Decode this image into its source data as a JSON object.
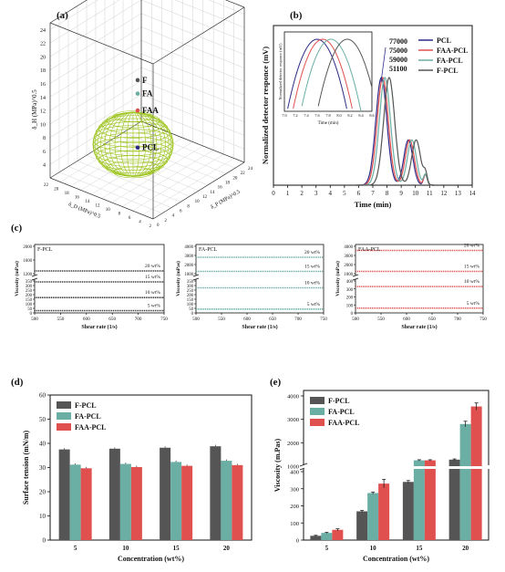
{
  "figure_labels": [
    "(a)",
    "(b)",
    "(c)",
    "(d)",
    "(e)"
  ],
  "colors": {
    "F": "#555555",
    "FA": "#6aaea4",
    "FAA": "#e0504f",
    "PCL": "#2e2a86",
    "sphere": "#9dc41c",
    "c_line": "#333333"
  },
  "chart_data": [
    {
      "id": "a",
      "type": "scatter",
      "panel_label": "(a)",
      "axes": {
        "vertical": {
          "label": "δ_H (MPa)^0.5",
          "ticks": [
            4,
            6,
            8,
            10,
            12,
            14,
            16,
            18,
            20,
            22,
            24
          ]
        },
        "left_floor": {
          "label": "δ_D (MPa)^0.5",
          "ticks": [
            22,
            20,
            18,
            16,
            14,
            12,
            10,
            8,
            6,
            4,
            2
          ]
        },
        "right_floor": {
          "label": "δ_P (MPa)^0.5",
          "ticks": [
            0,
            2,
            4,
            6,
            8,
            10,
            12,
            14,
            16,
            18,
            20,
            22,
            24
          ]
        }
      },
      "points": [
        {
          "name": "F",
          "z": 16.5
        },
        {
          "name": "FA",
          "z": 14.5
        },
        {
          "name": "FAA",
          "z": 12.0
        },
        {
          "name": "PCL",
          "z": 6.5
        }
      ],
      "sphere": {
        "center_name": "PCL",
        "z_range": [
          2.5,
          12
        ]
      }
    },
    {
      "id": "b",
      "type": "line",
      "panel_label": "(b)",
      "xlabel": "Time (min)",
      "ylabel": "Normalized detector responce (mV)",
      "xlim": [
        0,
        14
      ],
      "xticks": [
        0,
        1,
        2,
        3,
        4,
        5,
        6,
        7,
        8,
        9,
        10,
        11,
        12,
        13,
        14
      ],
      "legend": [
        "PCL",
        "FAA-PCL",
        "FA-PCL",
        "F-PCL"
      ],
      "legend_position": "top-right",
      "peak_annotations": [
        "77000",
        "75000",
        "59000",
        "51100"
      ],
      "series": [
        {
          "name": "PCL",
          "peak": 7.6
        },
        {
          "name": "FAA-PCL",
          "peak": 7.7
        },
        {
          "name": "FA-PCL",
          "peak": 7.85
        },
        {
          "name": "F-PCL",
          "peak": 8.15
        }
      ],
      "inset": {
        "ylabel": "Normalized detector responce (mV)",
        "xlabel": "Time (min)",
        "xlim": [
          7.0,
          8.6
        ],
        "xticks": [
          "7.0",
          "7.2",
          "7.4",
          "7.6",
          "7.8",
          "8.0",
          "8.2",
          "8.4",
          "8.6"
        ]
      }
    },
    {
      "id": "c1",
      "type": "line",
      "panel_label": "(c)",
      "title": "F-PCL",
      "xlabel": "Shear rate (1/s)",
      "ylabel": "Viscosity (mPas)",
      "xlim": [
        500,
        750
      ],
      "xticks": [
        500,
        550,
        600,
        650,
        700,
        750
      ],
      "yticks_upper": [
        1200,
        1600,
        2000
      ],
      "yticks_lower": [
        0,
        50,
        100,
        150,
        200,
        250,
        300,
        350
      ],
      "series": [
        {
          "name": "20 wt%",
          "value": 1280
        },
        {
          "name": "15 wt%",
          "value": 340
        },
        {
          "name": "10 wt%",
          "value": 168
        },
        {
          "name": "5 wt%",
          "value": 25
        }
      ]
    },
    {
      "id": "c2",
      "type": "line",
      "title": "FA-PCL",
      "xlabel": "Shear rate (1/s)",
      "ylabel": "Viscosity (mPas)",
      "xlim": [
        500,
        750
      ],
      "xticks": [
        500,
        550,
        600,
        650,
        700,
        750
      ],
      "yticks_upper": [
        1000,
        2000,
        3000,
        4000
      ],
      "yticks_lower": [
        0,
        50,
        100,
        150,
        200,
        250,
        300,
        350
      ],
      "series": [
        {
          "name": "20 wt%",
          "value": 2800
        },
        {
          "name": "15 wt%",
          "value": 1250
        },
        {
          "name": "10 wt%",
          "value": 275
        },
        {
          "name": "5 wt%",
          "value": 42
        }
      ]
    },
    {
      "id": "c3",
      "type": "line",
      "title": "FAA-PCL",
      "xlabel": "Shear rate (1/s)",
      "ylabel": "Viscosity (mPas)",
      "xlim": [
        500,
        750
      ],
      "xticks": [
        500,
        550,
        600,
        650,
        700,
        750
      ],
      "yticks_upper": [
        1000,
        2000,
        3000,
        4000
      ],
      "yticks_lower": [
        0,
        100,
        200,
        300,
        400
      ],
      "series": [
        {
          "name": "20 wt%",
          "value": 3550
        },
        {
          "name": "15 wt%",
          "value": 1250
        },
        {
          "name": "10 wt%",
          "value": 330
        },
        {
          "name": "5 wt%",
          "value": 60
        }
      ]
    },
    {
      "id": "d",
      "type": "bar",
      "panel_label": "(d)",
      "xlabel": "Concentration (wt%)",
      "ylabel": "Surface tension (mN/m)",
      "ylim": [
        0,
        60
      ],
      "yticks": [
        0,
        10,
        20,
        30,
        40,
        50,
        60
      ],
      "categories": [
        "5",
        "10",
        "15",
        "20"
      ],
      "legend_position": "top-left",
      "series": [
        {
          "name": "F-PCL",
          "values": [
            37.5,
            37.8,
            38.2,
            38.8
          ]
        },
        {
          "name": "FA-PCL",
          "values": [
            31.2,
            31.5,
            32.3,
            32.8
          ]
        },
        {
          "name": "FAA-PCL",
          "values": [
            29.7,
            30.2,
            30.7,
            31.0
          ]
        }
      ]
    },
    {
      "id": "e",
      "type": "bar",
      "panel_label": "(e)",
      "xlabel": "Concentration (wt%)",
      "ylabel": "Viscosity (m.Pas)",
      "yticks": [
        0,
        100,
        200,
        300,
        400,
        1000,
        2000,
        3000,
        4000
      ],
      "axis_break": [
        400,
        1000
      ],
      "categories": [
        "5",
        "10",
        "15",
        "20"
      ],
      "legend_position": "top-left",
      "series": [
        {
          "name": "F-PCL",
          "values": [
            25,
            168,
            340,
            1280
          ]
        },
        {
          "name": "FA-PCL",
          "values": [
            42,
            275,
            1250,
            2800
          ]
        },
        {
          "name": "FAA-PCL",
          "values": [
            60,
            330,
            1250,
            3550
          ]
        }
      ],
      "errors": [
        [
          3,
          5,
          8,
          30
        ],
        [
          3,
          6,
          25,
          120
        ],
        [
          6,
          25,
          25,
          150
        ]
      ]
    }
  ]
}
